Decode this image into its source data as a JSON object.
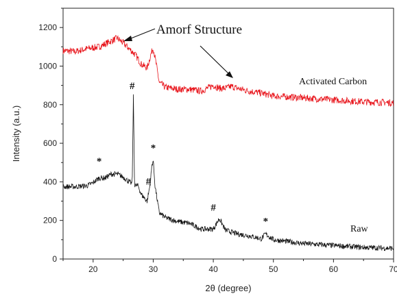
{
  "chart_data": {
    "type": "line",
    "xlabel": "2θ (degree)",
    "ylabel": "Intensity (a.u.)",
    "xlim": [
      15,
      70
    ],
    "ylim": [
      0,
      1300
    ],
    "x_ticks": [
      "20",
      "30",
      "40",
      "50",
      "60",
      "70"
    ],
    "y_ticks": [
      "0",
      "200",
      "400",
      "600",
      "800",
      "1000",
      "1200"
    ],
    "grid": false,
    "series": [
      {
        "name": "Activated Carbon",
        "color": "#e8141b",
        "x": [
          15,
          17,
          19,
          21,
          22,
          23,
          24,
          25,
          26,
          27,
          28,
          29,
          29.6,
          30.0,
          30.5,
          31,
          32,
          34,
          36,
          38,
          40,
          41,
          42,
          43,
          44,
          46,
          48,
          50,
          55,
          60,
          65,
          70
        ],
        "values": [
          1080,
          1075,
          1090,
          1100,
          1115,
          1130,
          1145,
          1120,
          1090,
          1060,
          1010,
          990,
          1060,
          1095,
          1010,
          915,
          890,
          880,
          880,
          870,
          900,
          885,
          885,
          895,
          885,
          870,
          860,
          845,
          835,
          825,
          815,
          810
        ]
      },
      {
        "name": "Raw",
        "color": "#111111",
        "x": [
          15,
          17,
          19,
          20,
          21,
          22,
          23,
          24,
          25,
          26,
          26.5,
          26.7,
          26.9,
          27.5,
          28,
          29,
          29.5,
          29.8,
          30.0,
          30.3,
          31,
          32,
          34,
          36,
          38,
          40,
          41,
          42,
          44,
          46,
          48,
          48.7,
          50,
          55,
          60,
          65,
          70
        ],
        "values": [
          375,
          375,
          380,
          395,
          420,
          420,
          440,
          440,
          425,
          400,
          390,
          840,
          380,
          380,
          335,
          300,
          390,
          490,
          510,
          380,
          240,
          215,
          195,
          185,
          155,
          155,
          210,
          150,
          130,
          120,
          105,
          130,
          100,
          80,
          70,
          60,
          55
        ]
      }
    ],
    "annotations": {
      "amorf": "Amorf Structure",
      "activated_label": "Activated Carbon",
      "raw_label": "Raw",
      "markers": [
        {
          "symbol": "*",
          "x": 21,
          "y": 490
        },
        {
          "symbol": "#",
          "x": 26.5,
          "y": 880
        },
        {
          "symbol": "#",
          "x": 29.2,
          "y": 385
        },
        {
          "symbol": "*",
          "x": 30.0,
          "y": 560
        },
        {
          "symbol": "#",
          "x": 40,
          "y": 250
        },
        {
          "symbol": "*",
          "x": 48.7,
          "y": 180
        }
      ]
    }
  }
}
